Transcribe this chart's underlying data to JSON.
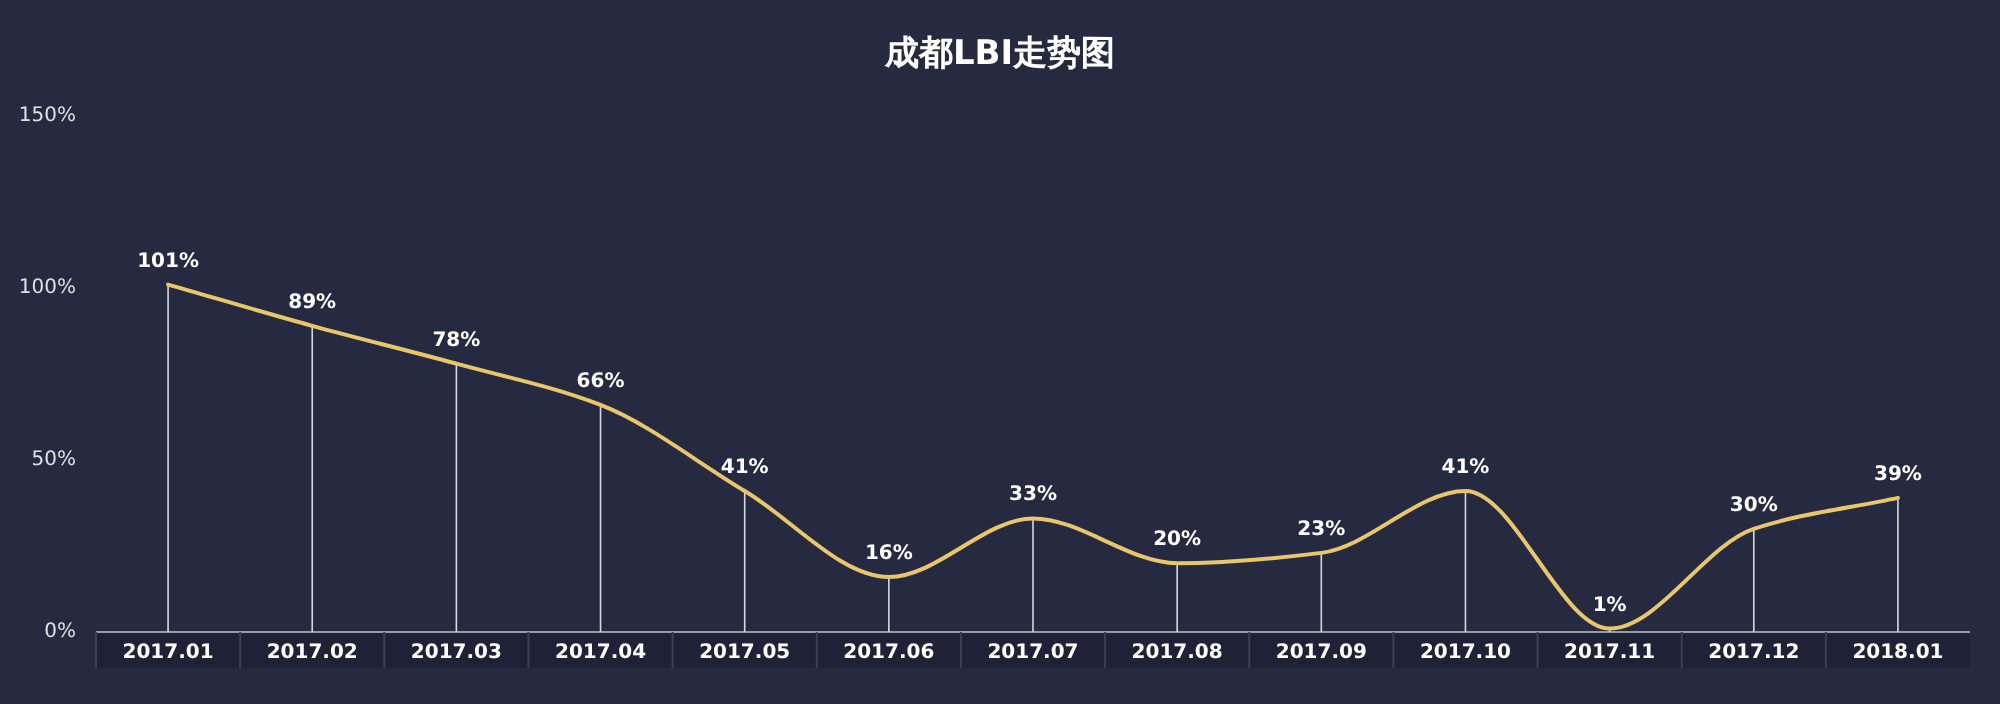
{
  "chart_data": {
    "type": "line",
    "title": "成都LBI走势图",
    "categories": [
      "2017.01",
      "2017.02",
      "2017.03",
      "2017.04",
      "2017.05",
      "2017.06",
      "2017.07",
      "2017.08",
      "2017.09",
      "2017.10",
      "2017.11",
      "2017.12",
      "2018.01"
    ],
    "series": [
      {
        "color": "#e8c66a",
        "values": [
          101,
          89,
          78,
          66,
          41,
          16,
          33,
          20,
          23,
          41,
          1,
          30,
          39
        ],
        "value_labels": [
          "101%",
          "89%",
          "78%",
          "66%",
          "41%",
          "16%",
          "33%",
          "20%",
          "23%",
          "41%",
          "1%",
          "30%",
          "39%"
        ]
      }
    ],
    "ylim": [
      0,
      150
    ],
    "yticks": [
      {
        "value": 0,
        "label": "0%"
      },
      {
        "value": 50,
        "label": "50%"
      },
      {
        "value": 100,
        "label": "100%"
      },
      {
        "value": 150,
        "label": "150%"
      }
    ],
    "grid": false,
    "marker": "none",
    "line_style": "solid"
  }
}
